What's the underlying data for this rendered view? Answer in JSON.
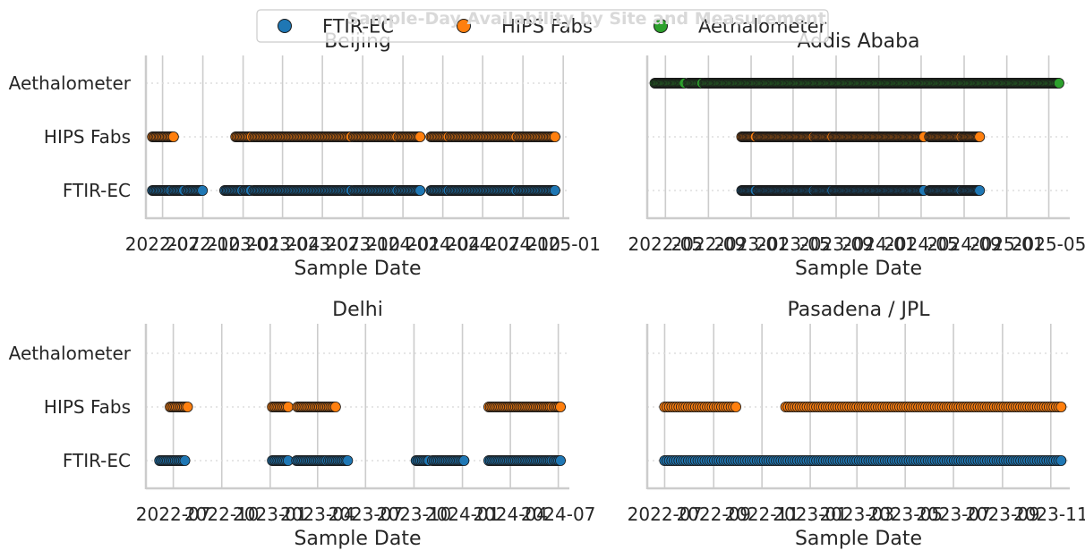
{
  "title": "Sample-Day Availability by Site and Measurement",
  "colors": {
    "FTIR-EC": "#1f77b4",
    "HIPS Fabs": "#ff7f0e",
    "Aethalometer": "#2ca02c",
    "edge": "#1a1a1a"
  },
  "legend": [
    "FTIR-EC",
    "HIPS Fabs",
    "Aethalometer"
  ],
  "chart_data": [
    {
      "type": "scatter",
      "title": "Beijing",
      "xlabel": "Sample Date",
      "ylabel": "",
      "categories": [
        "FTIR-EC",
        "HIPS Fabs",
        "Aethalometer"
      ],
      "x_ticks": [
        "2022-07",
        "2022-10",
        "2023-01",
        "2023-04",
        "2023-07",
        "2023-10",
        "2024-01",
        "2024-04",
        "2024-07",
        "2024-10",
        "2025-01"
      ],
      "x_tick_labels": [
        "2022-07",
        "2022-10",
        "2023-01",
        "2023-04",
        "2023-07",
        "2023-10",
        "2024-01",
        "2024-04",
        "2024-07",
        "2024-10",
        "2025-01"
      ],
      "xlim": [
        "2022-05-24",
        "2025-01-15"
      ],
      "grid": true,
      "series": [
        {
          "name": "FTIR-EC",
          "ranges": [
            [
              "2022-06-08",
              "2022-07-20"
            ],
            [
              "2022-07-25",
              "2022-08-20"
            ],
            [
              "2022-08-25",
              "2022-09-30"
            ],
            [
              "2022-11-20",
              "2022-12-31"
            ],
            [
              "2023-01-03",
              "2023-01-20"
            ],
            [
              "2023-01-25",
              "2023-05-25"
            ],
            [
              "2023-05-28",
              "2023-09-05"
            ],
            [
              "2023-09-10",
              "2023-10-22"
            ],
            [
              "2023-10-25",
              "2023-12-20"
            ],
            [
              "2023-12-23",
              "2024-02-10"
            ],
            [
              "2024-03-05",
              "2024-04-15"
            ],
            [
              "2024-04-18",
              "2024-09-15"
            ],
            [
              "2024-09-20",
              "2024-12-15"
            ]
          ]
        },
        {
          "name": "HIPS Fabs",
          "ranges": [
            [
              "2022-06-08",
              "2022-07-05"
            ],
            [
              "2022-07-08",
              "2022-07-28"
            ],
            [
              "2022-12-15",
              "2023-01-20"
            ],
            [
              "2023-01-25",
              "2023-05-25"
            ],
            [
              "2023-05-28",
              "2023-09-05"
            ],
            [
              "2023-09-10",
              "2023-10-22"
            ],
            [
              "2023-10-25",
              "2023-12-20"
            ],
            [
              "2023-12-23",
              "2024-02-10"
            ],
            [
              "2024-03-05",
              "2024-04-15"
            ],
            [
              "2024-04-18",
              "2024-09-15"
            ],
            [
              "2024-09-20",
              "2024-12-15"
            ]
          ]
        },
        {
          "name": "Aethalometer",
          "ranges": []
        }
      ]
    },
    {
      "type": "scatter",
      "title": "Addis Ababa",
      "xlabel": "Sample Date",
      "ylabel": "",
      "categories": [
        "FTIR-EC",
        "HIPS Fabs",
        "Aethalometer"
      ],
      "x_ticks": [
        "2022-05",
        "2022-09",
        "2023-01",
        "2023-05",
        "2023-09",
        "2024-01",
        "2024-05",
        "2024-09",
        "2025-01",
        "2025-05"
      ],
      "x_tick_labels": [
        "2022-05",
        "2022-09",
        "2023-01",
        "2023-05",
        "2023-09",
        "2024-01",
        "2024-05",
        "2024-09",
        "2025-01",
        "2025-05"
      ],
      "xlim": [
        "2022-03-10",
        "2025-06-30"
      ],
      "grid": true,
      "series": [
        {
          "name": "FTIR-EC",
          "ranges": [
            [
              "2022-12-05",
              "2023-01-15"
            ],
            [
              "2023-01-20",
              "2023-06-30"
            ],
            [
              "2023-07-03",
              "2023-08-20"
            ],
            [
              "2023-08-25",
              "2024-05-10"
            ],
            [
              "2024-05-25",
              "2024-08-25"
            ],
            [
              "2024-08-28",
              "2024-10-15"
            ]
          ]
        },
        {
          "name": "HIPS Fabs",
          "ranges": [
            [
              "2022-12-05",
              "2023-01-15"
            ],
            [
              "2023-01-20",
              "2023-06-30"
            ],
            [
              "2023-07-03",
              "2023-08-20"
            ],
            [
              "2023-08-25",
              "2024-05-10"
            ],
            [
              "2024-05-25",
              "2024-08-25"
            ],
            [
              "2024-08-28",
              "2024-10-15"
            ]
          ]
        },
        {
          "name": "Aethalometer",
          "ranges": [
            [
              "2022-04-01",
              "2022-06-25"
            ],
            [
              "2022-07-05",
              "2022-08-15"
            ],
            [
              "2022-08-20",
              "2025-06-01"
            ]
          ]
        }
      ]
    },
    {
      "type": "scatter",
      "title": "Delhi",
      "xlabel": "Sample Date",
      "ylabel": "",
      "categories": [
        "FTIR-EC",
        "HIPS Fabs",
        "Aethalometer"
      ],
      "x_ticks": [
        "2022-07",
        "2022-10",
        "2023-01",
        "2023-04",
        "2023-07",
        "2023-10",
        "2024-01",
        "2024-04",
        "2024-07"
      ],
      "x_tick_labels": [
        "2022-07",
        "2022-10",
        "2023-01",
        "2023-04",
        "2023-07",
        "2023-10",
        "2024-01",
        "2024-04",
        "2024-07"
      ],
      "xlim": [
        "2022-05-10",
        "2024-07-22"
      ],
      "grid": true,
      "series": [
        {
          "name": "FTIR-EC",
          "ranges": [
            [
              "2022-06-05",
              "2022-07-25"
            ],
            [
              "2023-01-05",
              "2023-02-05"
            ],
            [
              "2023-02-20",
              "2023-04-20"
            ],
            [
              "2023-04-22",
              "2023-05-30"
            ],
            [
              "2023-10-05",
              "2023-10-30"
            ],
            [
              "2023-11-05",
              "2024-01-05"
            ],
            [
              "2024-02-20",
              "2024-03-15"
            ],
            [
              "2024-03-18",
              "2024-06-20"
            ],
            [
              "2024-06-23",
              "2024-07-05"
            ]
          ]
        },
        {
          "name": "HIPS Fabs",
          "ranges": [
            [
              "2022-06-25",
              "2022-07-30"
            ],
            [
              "2023-01-05",
              "2023-02-05"
            ],
            [
              "2023-02-22",
              "2023-05-05"
            ],
            [
              "2024-02-20",
              "2024-03-15"
            ],
            [
              "2024-03-18",
              "2024-06-20"
            ],
            [
              "2024-06-23",
              "2024-07-05"
            ]
          ]
        },
        {
          "name": "Aethalometer",
          "ranges": []
        }
      ]
    },
    {
      "type": "scatter",
      "title": "Pasadena / JPL",
      "xlabel": "Sample Date",
      "ylabel": "",
      "categories": [
        "FTIR-EC",
        "HIPS Fabs",
        "Aethalometer"
      ],
      "x_ticks": [
        "2022-07",
        "2022-09",
        "2022-11",
        "2023-01",
        "2023-03",
        "2023-05",
        "2023-07",
        "2023-09",
        "2023-11"
      ],
      "x_tick_labels": [
        "2022-07",
        "2022-09",
        "2022-11",
        "2023-01",
        "2023-03",
        "2023-05",
        "2023-07",
        "2023-09",
        "2023-11"
      ],
      "xlim": [
        "2022-06-09",
        "2023-11-25"
      ],
      "grid": true,
      "series": [
        {
          "name": "FTIR-EC",
          "ranges": [
            [
              "2022-07-01",
              "2023-11-15"
            ]
          ]
        },
        {
          "name": "HIPS Fabs",
          "ranges": [
            [
              "2022-07-01",
              "2022-09-30"
            ],
            [
              "2022-12-01",
              "2023-11-15"
            ]
          ]
        },
        {
          "name": "Aethalometer",
          "ranges": []
        }
      ]
    }
  ]
}
